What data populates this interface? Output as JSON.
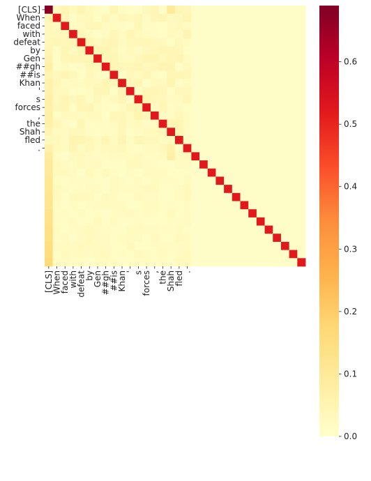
{
  "chart_data": {
    "type": "heatmap",
    "title": "",
    "xlabel": "",
    "ylabel": "",
    "x_labels": [
      "[CLS]",
      "When",
      "faced",
      "with",
      "defeat",
      "by",
      "Gen",
      "##gh",
      "##is",
      "Khan",
      "'",
      "s",
      "forces",
      ",",
      "the",
      "Shah",
      "fled",
      ".",
      "",
      "",
      "",
      "",
      "",
      "",
      "",
      "",
      "",
      "",
      "",
      "",
      "",
      ""
    ],
    "y_labels": [
      "[CLS]",
      "When",
      "faced",
      "with",
      "defeat",
      "by",
      "Gen",
      "##gh",
      "##is",
      "Khan",
      "'",
      "s",
      "forces",
      ",",
      "the",
      "Shah",
      "fled",
      ".",
      "",
      "",
      "",
      "",
      "",
      "",
      "",
      "",
      "",
      "",
      "",
      "",
      "",
      ""
    ],
    "n": 32,
    "cls_attention_value": 0.68,
    "diagonal_value": 0.52,
    "first_column_tail_values": [
      0.09,
      0.1,
      0.1,
      0.11,
      0.11,
      0.12,
      0.12,
      0.13,
      0.13,
      0.14,
      0.14,
      0.15,
      0.15,
      0.16
    ],
    "background_value": 0.01,
    "notable_cells": [
      {
        "row": 0,
        "col": 15,
        "value": 0.1
      },
      {
        "row": 17,
        "col": 15,
        "value": 0.06
      },
      {
        "row": 18,
        "col": 15,
        "value": 0.07
      }
    ],
    "colormap": "YlOrRd",
    "colorbar": {
      "min": 0.0,
      "max": 0.69,
      "ticks": [
        0.0,
        0.1,
        0.2,
        0.3,
        0.4,
        0.5,
        0.6
      ],
      "tick_labels": [
        "0.0",
        "0.1",
        "0.2",
        "0.3",
        "0.4",
        "0.5",
        "0.6"
      ]
    },
    "grid": false,
    "legend": "none"
  }
}
